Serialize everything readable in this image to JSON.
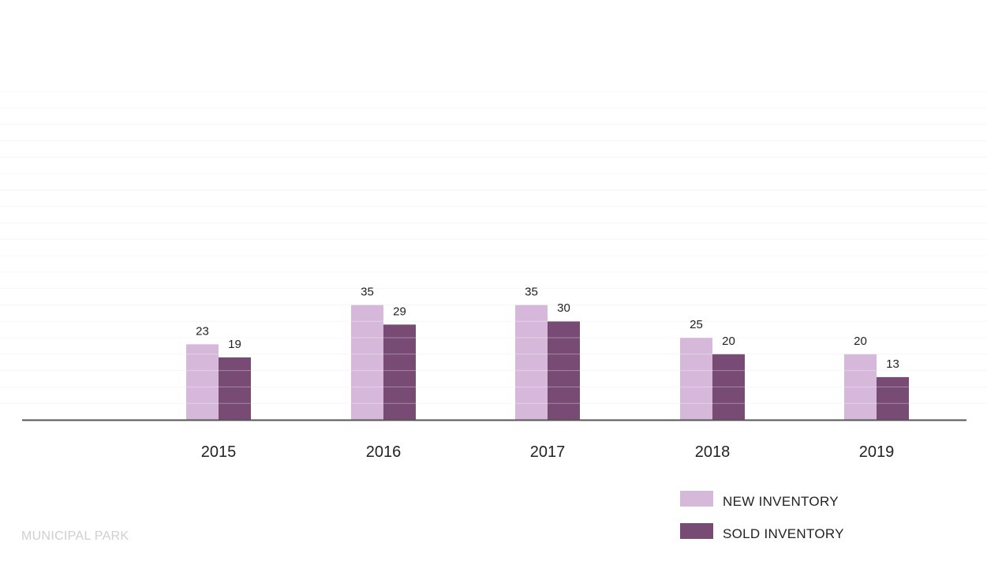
{
  "chart_data": {
    "type": "bar",
    "categories": [
      "2015",
      "2016",
      "2017",
      "2018",
      "2019"
    ],
    "series": [
      {
        "name": "NEW INVENTORY",
        "values": [
          23,
          35,
          35,
          25,
          20
        ],
        "color": "#d6b9da"
      },
      {
        "name": "SOLD INVENTORY",
        "values": [
          19,
          29,
          30,
          20,
          13
        ],
        "color": "#774b73"
      }
    ],
    "title": "",
    "xlabel": "",
    "ylabel": "",
    "ylim": [
      0,
      100
    ],
    "grid": true,
    "legend_position": "bottom-right",
    "data_labels": true
  },
  "footer": {
    "label": "MUNICIPAL PARK"
  },
  "colors": {
    "axis": "#555555",
    "grid": "#f4f4f4"
  }
}
